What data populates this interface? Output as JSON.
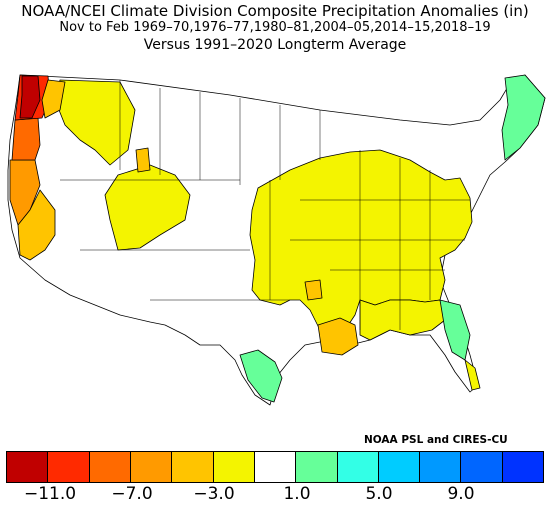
{
  "title": {
    "line1": "NOAA/NCEI Climate Division Composite Precipitation Anomalies (in)",
    "line2": "Nov to Feb  1969–70,1976–77,1980–81,2004–05,2014–15,2018–19",
    "line3": "Versus 1991–2020 Longterm Average"
  },
  "credit": "NOAA PSL and CIRES-CU",
  "legend": {
    "colors": [
      "#c00000",
      "#ff2a00",
      "#ff6a00",
      "#ff9a00",
      "#ffc400",
      "#f4f400",
      "#ffffff",
      "#66ff99",
      "#33ffe6",
      "#00ccff",
      "#0099ff",
      "#0066ff",
      "#0033ff"
    ],
    "labels": [
      "−11.0",
      "−7.0",
      "−3.0",
      "1.0",
      "5.0",
      "9.0"
    ]
  },
  "regions": [
    {
      "name": "wa-coast",
      "anomaly": "< -11.0",
      "color": "#c00000"
    },
    {
      "name": "wa-coast-inner",
      "anomaly": "-9 to -7",
      "color": "#ff2a00"
    },
    {
      "name": "or-coast",
      "anomaly": "-7 to -5",
      "color": "#ff6a00"
    },
    {
      "name": "nw-cascades",
      "anomaly": "-3 to -1",
      "color": "#ffc400"
    },
    {
      "name": "ca-north-coast",
      "anomaly": "-5 to -3",
      "color": "#ff9a00"
    },
    {
      "name": "ca-sierra",
      "anomaly": "-3 to -1",
      "color": "#ffc400"
    },
    {
      "name": "central-us",
      "anomaly": "-1 to 1",
      "color": "#f4f400"
    },
    {
      "name": "gulf-coast",
      "anomaly": "-3 to -1",
      "color": "#ffc400"
    },
    {
      "name": "tx-south",
      "anomaly": "1 to 3",
      "color": "#66ff99"
    },
    {
      "name": "fl-north",
      "anomaly": "1 to 3",
      "color": "#66ff99"
    },
    {
      "name": "new-england",
      "anomaly": "1 to 3",
      "color": "#66ff99"
    }
  ]
}
